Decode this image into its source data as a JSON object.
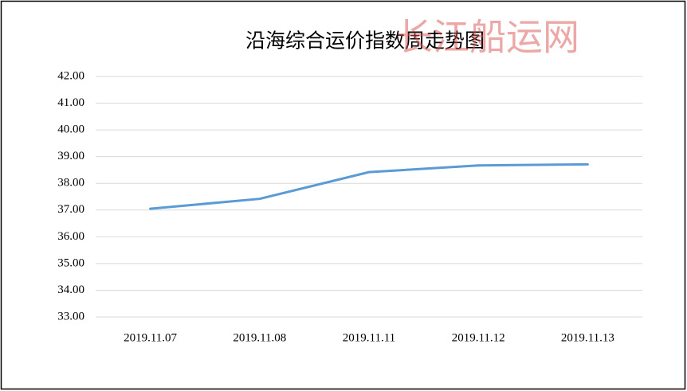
{
  "chart_data": {
    "type": "line",
    "title": "沿海综合运价指数周走势图",
    "watermark": "长江船运网",
    "categories": [
      "2019.11.07",
      "2019.11.08",
      "2019.11.11",
      "2019.11.12",
      "2019.11.13"
    ],
    "values": [
      37.05,
      37.42,
      38.42,
      38.67,
      38.71
    ],
    "color": "#5b9bd5",
    "ylim": [
      33,
      42
    ],
    "yticks": [
      {
        "value": 33,
        "label": "33.00"
      },
      {
        "value": 34,
        "label": "34.00"
      },
      {
        "value": 35,
        "label": "35.00"
      },
      {
        "value": 36,
        "label": "36.00"
      },
      {
        "value": 37,
        "label": "37.00"
      },
      {
        "value": 38,
        "label": "38.00"
      },
      {
        "value": 39,
        "label": "39.00"
      },
      {
        "value": 40,
        "label": "40.00"
      },
      {
        "value": 41,
        "label": "41.00"
      },
      {
        "value": 42,
        "label": "42.00"
      }
    ],
    "grid": true
  }
}
